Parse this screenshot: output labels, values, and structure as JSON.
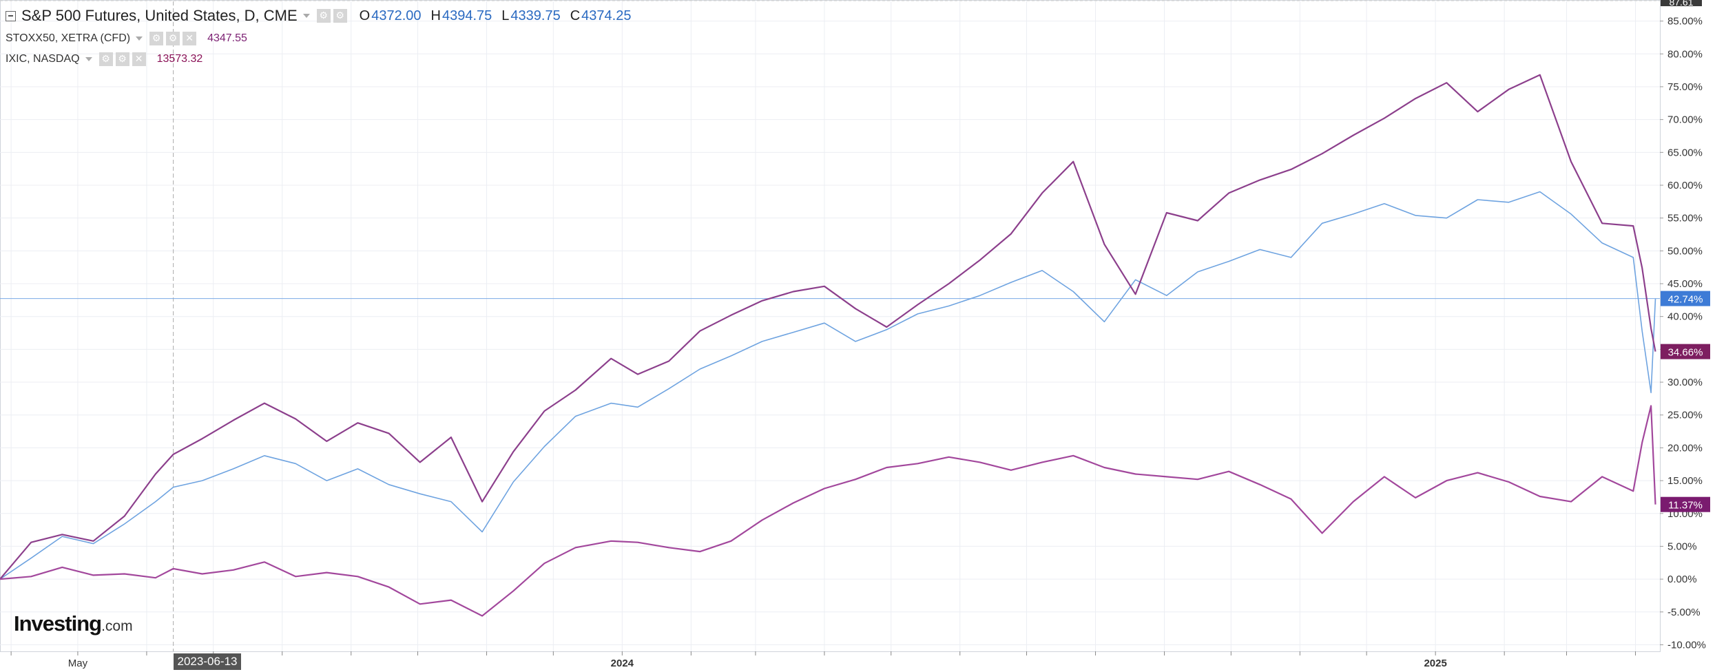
{
  "legend": {
    "main": {
      "title": "S&P 500 Futures, United States, D, CME",
      "ohlc": [
        {
          "key": "O",
          "value": "4372.00"
        },
        {
          "key": "H",
          "value": "4394.75"
        },
        {
          "key": "L",
          "value": "4339.75"
        },
        {
          "key": "C",
          "value": "4374.25"
        }
      ]
    },
    "compare": [
      {
        "title": "STOXX50, XETRA (CFD)",
        "value": "4347.55"
      },
      {
        "title": "IXIC, NASDAQ",
        "value": "13573.32"
      }
    ]
  },
  "crosshair_date": "2023-06-13",
  "brand": {
    "main": "Investing",
    "suffix": ".com"
  },
  "colors": {
    "sp500": "#6ea3e0",
    "stoxx": "#8c3f8c",
    "ixic": "#a2479c",
    "sp500_badge": "#3d7bd6",
    "stoxx_badge": "#7d1e60",
    "ixic_badge": "#7a1b6f",
    "grid": "#eceef3",
    "axis_text": "#333333"
  },
  "chart_data": {
    "type": "line",
    "title": "S&P 500 Futures, United States, D, CME",
    "xlabel": "",
    "ylabel": "",
    "y_unit": "%",
    "ylim": [
      -11,
      88
    ],
    "xlim": [
      "2023-03-27",
      "2025-04-12"
    ],
    "y_ticks": [
      -10,
      -5,
      0,
      5,
      10,
      15,
      20,
      25,
      30,
      35,
      40,
      45,
      50,
      55,
      60,
      65,
      70,
      75,
      80,
      85
    ],
    "y_tick_labels": [
      "-10.00%",
      "-5.00%",
      "0.00%",
      "5.00%",
      "10.00%",
      "15.00%",
      "20.00%",
      "25.00%",
      "30.00%",
      "35.00%",
      "40.00%",
      "45.00%",
      "50.00%",
      "55.00%",
      "60.00%",
      "65.00%",
      "70.00%",
      "75.00%",
      "80.00%",
      "85.00%"
    ],
    "y_top_label": "87.61",
    "x_tick_labels": [
      {
        "date": "2023-05-01",
        "label": "May"
      },
      {
        "date": "2024-01-01",
        "label": "2024"
      },
      {
        "date": "2025-01-01",
        "label": "2025"
      }
    ],
    "grid": true,
    "horizontal_reference": 42.74,
    "series": [
      {
        "name": "S&P 500 Futures",
        "key": "sp500",
        "last_label": "42.74%",
        "last_value": 42.74,
        "points": [
          [
            "2023-03-27",
            0
          ],
          [
            "2023-04-10",
            3.2
          ],
          [
            "2023-04-24",
            6.5
          ],
          [
            "2023-05-08",
            5.4
          ],
          [
            "2023-05-22",
            8.4
          ],
          [
            "2023-06-05",
            11.8
          ],
          [
            "2023-06-13",
            14.0
          ],
          [
            "2023-06-26",
            15.0
          ],
          [
            "2023-07-10",
            16.8
          ],
          [
            "2023-07-24",
            18.8
          ],
          [
            "2023-08-07",
            17.6
          ],
          [
            "2023-08-21",
            15.0
          ],
          [
            "2023-09-04",
            16.8
          ],
          [
            "2023-09-18",
            14.4
          ],
          [
            "2023-10-02",
            13.0
          ],
          [
            "2023-10-16",
            11.8
          ],
          [
            "2023-10-30",
            7.2
          ],
          [
            "2023-11-13",
            14.8
          ],
          [
            "2023-11-27",
            20.2
          ],
          [
            "2023-12-11",
            24.8
          ],
          [
            "2023-12-27",
            26.8
          ],
          [
            "2024-01-08",
            26.2
          ],
          [
            "2024-01-22",
            29.0
          ],
          [
            "2024-02-05",
            32.0
          ],
          [
            "2024-02-19",
            34.0
          ],
          [
            "2024-03-04",
            36.2
          ],
          [
            "2024-03-18",
            37.6
          ],
          [
            "2024-04-01",
            39.0
          ],
          [
            "2024-04-15",
            36.2
          ],
          [
            "2024-04-29",
            38.0
          ],
          [
            "2024-05-13",
            40.4
          ],
          [
            "2024-05-27",
            41.6
          ],
          [
            "2024-06-10",
            43.2
          ],
          [
            "2024-06-24",
            45.2
          ],
          [
            "2024-07-08",
            47.0
          ],
          [
            "2024-07-22",
            43.8
          ],
          [
            "2024-08-05",
            39.2
          ],
          [
            "2024-08-19",
            45.6
          ],
          [
            "2024-09-02",
            43.2
          ],
          [
            "2024-09-16",
            46.8
          ],
          [
            "2024-09-30",
            48.4
          ],
          [
            "2024-10-14",
            50.2
          ],
          [
            "2024-10-28",
            49.0
          ],
          [
            "2024-11-11",
            54.2
          ],
          [
            "2024-11-25",
            55.6
          ],
          [
            "2024-12-09",
            57.2
          ],
          [
            "2024-12-23",
            55.4
          ],
          [
            "2025-01-06",
            55.0
          ],
          [
            "2025-01-20",
            57.8
          ],
          [
            "2025-02-03",
            57.4
          ],
          [
            "2025-02-17",
            59.0
          ],
          [
            "2025-03-03",
            55.6
          ],
          [
            "2025-03-17",
            51.2
          ],
          [
            "2025-03-31",
            49.0
          ],
          [
            "2025-04-04",
            37.8
          ],
          [
            "2025-04-08",
            28.4
          ],
          [
            "2025-04-10",
            42.74
          ]
        ]
      },
      {
        "name": "STOXX50, XETRA (CFD)",
        "key": "stoxx",
        "last_label": "34.66%",
        "last_value": 34.66,
        "points": [
          [
            "2023-03-27",
            0
          ],
          [
            "2023-04-10",
            5.6
          ],
          [
            "2023-04-24",
            6.8
          ],
          [
            "2023-05-08",
            5.8
          ],
          [
            "2023-05-22",
            9.6
          ],
          [
            "2023-06-05",
            16.0
          ],
          [
            "2023-06-13",
            19.0
          ],
          [
            "2023-06-26",
            21.4
          ],
          [
            "2023-07-10",
            24.2
          ],
          [
            "2023-07-24",
            26.8
          ],
          [
            "2023-08-07",
            24.4
          ],
          [
            "2023-08-21",
            21.0
          ],
          [
            "2023-09-04",
            23.8
          ],
          [
            "2023-09-18",
            22.2
          ],
          [
            "2023-10-02",
            17.8
          ],
          [
            "2023-10-16",
            21.6
          ],
          [
            "2023-10-30",
            11.8
          ],
          [
            "2023-11-13",
            19.4
          ],
          [
            "2023-11-27",
            25.6
          ],
          [
            "2023-12-11",
            28.8
          ],
          [
            "2023-12-27",
            33.6
          ],
          [
            "2024-01-08",
            31.2
          ],
          [
            "2024-01-22",
            33.2
          ],
          [
            "2024-02-05",
            37.8
          ],
          [
            "2024-02-19",
            40.2
          ],
          [
            "2024-03-04",
            42.4
          ],
          [
            "2024-03-18",
            43.8
          ],
          [
            "2024-04-01",
            44.6
          ],
          [
            "2024-04-15",
            41.2
          ],
          [
            "2024-04-29",
            38.4
          ],
          [
            "2024-05-13",
            41.8
          ],
          [
            "2024-05-27",
            45.0
          ],
          [
            "2024-06-10",
            48.6
          ],
          [
            "2024-06-24",
            52.6
          ],
          [
            "2024-07-08",
            58.8
          ],
          [
            "2024-07-22",
            63.6
          ],
          [
            "2024-08-05",
            51.0
          ],
          [
            "2024-08-19",
            43.4
          ],
          [
            "2024-09-02",
            55.8
          ],
          [
            "2024-09-16",
            54.6
          ],
          [
            "2024-09-30",
            58.8
          ],
          [
            "2024-10-14",
            60.8
          ],
          [
            "2024-10-28",
            62.4
          ],
          [
            "2024-11-11",
            64.8
          ],
          [
            "2024-11-25",
            67.6
          ],
          [
            "2024-12-09",
            70.2
          ],
          [
            "2024-12-23",
            73.2
          ],
          [
            "2025-01-06",
            75.6
          ],
          [
            "2025-01-20",
            71.2
          ],
          [
            "2025-02-03",
            74.6
          ],
          [
            "2025-02-17",
            76.8
          ],
          [
            "2025-03-03",
            63.6
          ],
          [
            "2025-03-17",
            54.2
          ],
          [
            "2025-03-31",
            53.8
          ],
          [
            "2025-04-04",
            47.4
          ],
          [
            "2025-04-08",
            38.2
          ],
          [
            "2025-04-10",
            34.66
          ]
        ]
      },
      {
        "name": "IXIC, NASDAQ",
        "key": "ixic",
        "last_label": "11.37%",
        "last_value": 11.37,
        "points": [
          [
            "2023-03-27",
            0
          ],
          [
            "2023-04-10",
            0.4
          ],
          [
            "2023-04-24",
            1.8
          ],
          [
            "2023-05-08",
            0.6
          ],
          [
            "2023-05-22",
            0.8
          ],
          [
            "2023-06-05",
            0.2
          ],
          [
            "2023-06-13",
            1.6
          ],
          [
            "2023-06-26",
            0.8
          ],
          [
            "2023-07-10",
            1.4
          ],
          [
            "2023-07-24",
            2.6
          ],
          [
            "2023-08-07",
            0.4
          ],
          [
            "2023-08-21",
            1.0
          ],
          [
            "2023-09-04",
            0.4
          ],
          [
            "2023-09-18",
            -1.2
          ],
          [
            "2023-10-02",
            -3.8
          ],
          [
            "2023-10-16",
            -3.2
          ],
          [
            "2023-10-30",
            -5.6
          ],
          [
            "2023-11-13",
            -1.8
          ],
          [
            "2023-11-27",
            2.4
          ],
          [
            "2023-12-11",
            4.8
          ],
          [
            "2023-12-27",
            5.8
          ],
          [
            "2024-01-08",
            5.6
          ],
          [
            "2024-01-22",
            4.8
          ],
          [
            "2024-02-05",
            4.2
          ],
          [
            "2024-02-19",
            5.8
          ],
          [
            "2024-03-04",
            9.0
          ],
          [
            "2024-03-18",
            11.6
          ],
          [
            "2024-04-01",
            13.8
          ],
          [
            "2024-04-15",
            15.2
          ],
          [
            "2024-04-29",
            17.0
          ],
          [
            "2024-05-13",
            17.6
          ],
          [
            "2024-05-27",
            18.6
          ],
          [
            "2024-06-10",
            17.8
          ],
          [
            "2024-06-24",
            16.6
          ],
          [
            "2024-07-08",
            17.8
          ],
          [
            "2024-07-22",
            18.8
          ],
          [
            "2024-08-05",
            17.0
          ],
          [
            "2024-08-19",
            16.0
          ],
          [
            "2024-09-02",
            15.6
          ],
          [
            "2024-09-16",
            15.2
          ],
          [
            "2024-09-30",
            16.4
          ],
          [
            "2024-10-14",
            14.4
          ],
          [
            "2024-10-28",
            12.2
          ],
          [
            "2024-11-11",
            7.0
          ],
          [
            "2024-11-25",
            11.8
          ],
          [
            "2024-12-09",
            15.6
          ],
          [
            "2024-12-23",
            12.4
          ],
          [
            "2025-01-06",
            15.0
          ],
          [
            "2025-01-20",
            16.2
          ],
          [
            "2025-02-03",
            14.8
          ],
          [
            "2025-02-17",
            12.6
          ],
          [
            "2025-03-03",
            11.8
          ],
          [
            "2025-03-17",
            15.6
          ],
          [
            "2025-03-31",
            13.4
          ],
          [
            "2025-04-04",
            20.8
          ],
          [
            "2025-04-08",
            26.4
          ],
          [
            "2025-04-10",
            11.37
          ]
        ]
      }
    ]
  }
}
